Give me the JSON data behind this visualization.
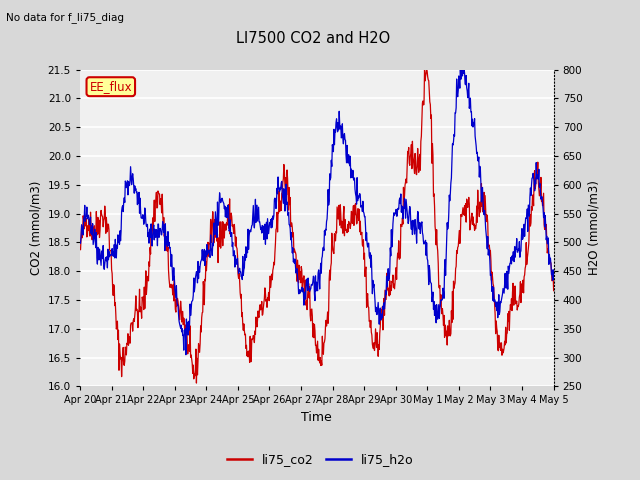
{
  "title": "LI7500 CO2 and H2O",
  "subtitle": "No data for f_li75_diag",
  "xlabel": "Time",
  "ylabel_left": "CO2 (mmol/m3)",
  "ylabel_right": "H2O (mmol/m3)",
  "ylim_left": [
    16.0,
    21.5
  ],
  "ylim_right": [
    250,
    800
  ],
  "yticks_left": [
    16.0,
    16.5,
    17.0,
    17.5,
    18.0,
    18.5,
    19.0,
    19.5,
    20.0,
    20.5,
    21.0,
    21.5
  ],
  "yticks_right": [
    250,
    300,
    350,
    400,
    450,
    500,
    550,
    600,
    650,
    700,
    750,
    800
  ],
  "xtick_labels": [
    "Apr 20",
    "Apr 21",
    "Apr 22",
    "Apr 23",
    "Apr 24",
    "Apr 25",
    "Apr 26",
    "Apr 27",
    "Apr 28",
    "Apr 29",
    "Apr 30",
    "May 1",
    "May 2",
    "May 3",
    "May 4",
    "May 5"
  ],
  "legend_label_co2": "li75_co2",
  "legend_label_h2o": "li75_h2o",
  "color_co2": "#cc0000",
  "color_h2o": "#0000cc",
  "annotation_label": "EE_flux",
  "annotation_color": "#cc0000",
  "annotation_bg": "#ffff99",
  "background_color": "#d8d8d8",
  "plot_bg_color": "#f0f0f0",
  "grid_color": "#ffffff",
  "n_points": 900,
  "seed": 42
}
